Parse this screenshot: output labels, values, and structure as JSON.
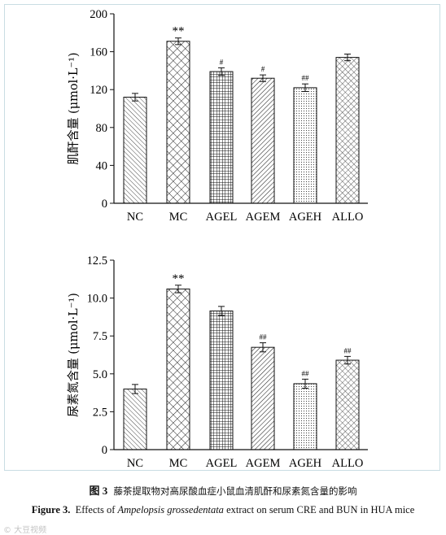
{
  "caption": {
    "cn_label": "图 3",
    "cn_text": "藤茶提取物对高尿酸血症小鼠血清肌酐和尿素氮含量的影响",
    "en_label": "Figure 3.",
    "en_pre": "Effects of ",
    "en_italic": "Ampelopsis grossedentata",
    "en_post": " extract on serum CRE and BUN in HUA mice"
  },
  "watermark": "© 大豆视频",
  "chart_data": [
    {
      "type": "bar",
      "ylabel": "肌酐含量 (μmol·L⁻¹)",
      "categories": [
        "NC",
        "MC",
        "AGEL",
        "AGEM",
        "AGEH",
        "ALLO"
      ],
      "values": [
        112,
        171,
        139,
        132,
        122,
        154
      ],
      "errors": [
        4,
        3.5,
        4,
        3.5,
        4,
        3.5
      ],
      "annotations": [
        "",
        "**",
        "#",
        "#",
        "##",
        ""
      ],
      "patterns": [
        "diag",
        "cross",
        "grid",
        "diagstrong",
        "dots",
        "crossfine"
      ],
      "ylim": [
        0,
        200
      ],
      "yticks": [
        0,
        40,
        80,
        120,
        160,
        200
      ],
      "ytick_labels": [
        "0",
        "40",
        "80",
        "120",
        "160",
        "200"
      ]
    },
    {
      "type": "bar",
      "ylabel": "尿素氮含量 (μmol·L⁻¹)",
      "categories": [
        "NC",
        "MC",
        "AGEL",
        "AGEM",
        "AGEH",
        "ALLO"
      ],
      "values": [
        4.0,
        10.6,
        9.15,
        6.75,
        4.35,
        5.9
      ],
      "errors": [
        0.3,
        0.25,
        0.3,
        0.3,
        0.3,
        0.25
      ],
      "annotations": [
        "",
        "**",
        "",
        "##",
        "##",
        "##"
      ],
      "patterns": [
        "diag",
        "cross",
        "grid",
        "diagstrong",
        "dots",
        "crossfine"
      ],
      "ylim": [
        0,
        12.5
      ],
      "yticks": [
        0,
        2.5,
        5.0,
        7.5,
        10.0,
        12.5
      ],
      "ytick_labels": [
        "0",
        "2.5",
        "5.0",
        "7.5",
        "10.0",
        "12.5"
      ]
    }
  ]
}
